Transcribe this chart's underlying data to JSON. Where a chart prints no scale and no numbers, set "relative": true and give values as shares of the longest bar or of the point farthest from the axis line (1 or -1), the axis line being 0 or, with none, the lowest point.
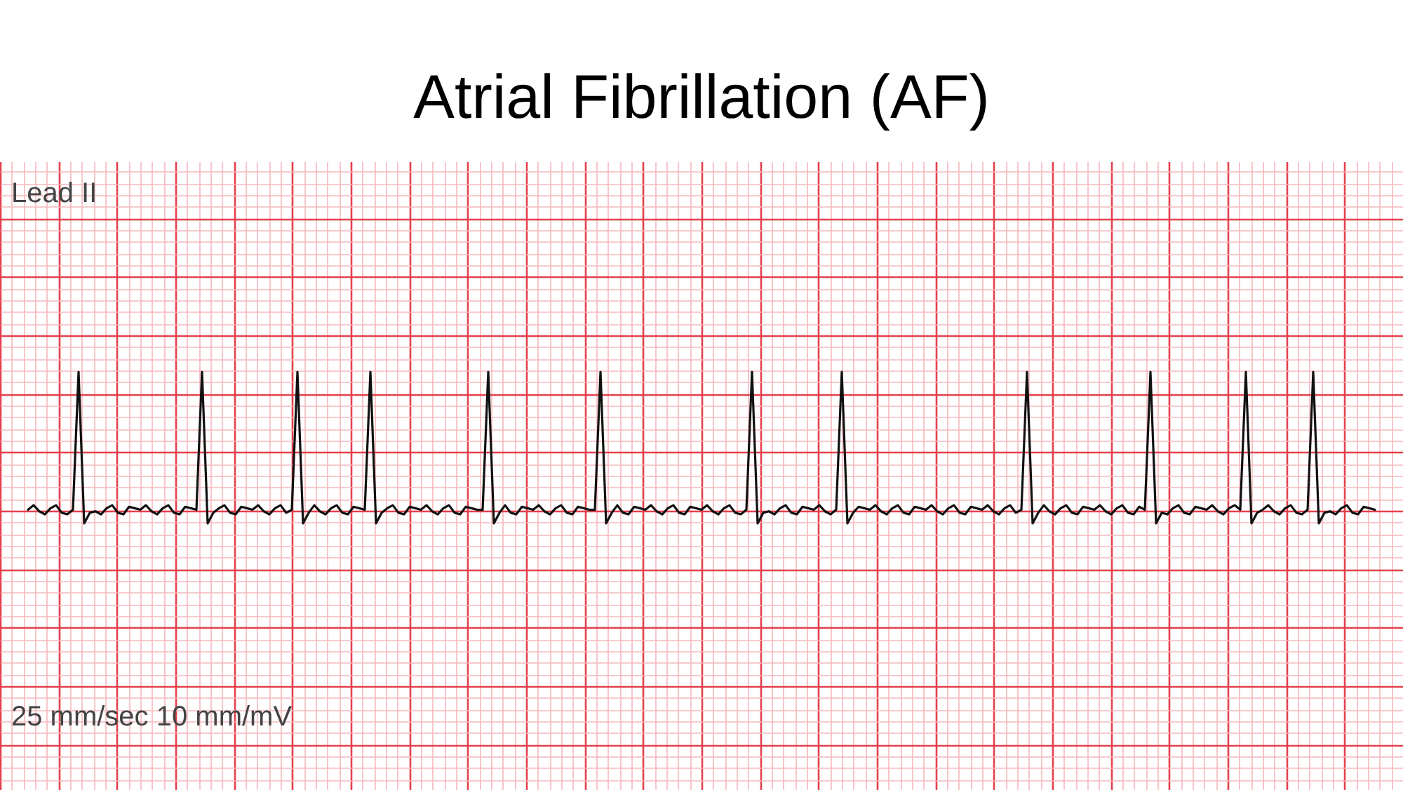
{
  "chart_data": {
    "type": "line",
    "title": "Atrial Fibrillation (AF)",
    "relative": true,
    "grid": true,
    "annotations": [
      "Lead II",
      "25 mm/sec 10 mm/mV"
    ],
    "categories": [
      null,
      null,
      null,
      null,
      null,
      null,
      null,
      null,
      null,
      null,
      null,
      null,
      null,
      null,
      null,
      null,
      null,
      null,
      null,
      null,
      null,
      null,
      null,
      null,
      null,
      null,
      null,
      null,
      null,
      null,
      null,
      null,
      null,
      null,
      null,
      null,
      null,
      null,
      null,
      null,
      null,
      null,
      null,
      null,
      null,
      null,
      null,
      null,
      null,
      null,
      null,
      null,
      null,
      null,
      null,
      null,
      null,
      null,
      null,
      null,
      null,
      null,
      null,
      null,
      null,
      null,
      null,
      null,
      null,
      null,
      null,
      null,
      null,
      null,
      null,
      null,
      null,
      null,
      null,
      null,
      null,
      null,
      null,
      null,
      null,
      null,
      null,
      null,
      null,
      null,
      null,
      null,
      null,
      null,
      null,
      null,
      null,
      null,
      null,
      null,
      null,
      null,
      null,
      null,
      null,
      null,
      null,
      null,
      null,
      null,
      null,
      null,
      null,
      null,
      null,
      null,
      null,
      null,
      null,
      null,
      null,
      null,
      null,
      null,
      null,
      null,
      null,
      null,
      null,
      null,
      null,
      null,
      null,
      null,
      null,
      null,
      null,
      null,
      null,
      null,
      null,
      null,
      null,
      null,
      null,
      null,
      null,
      null,
      null,
      null,
      null,
      null,
      null,
      null,
      null,
      null,
      null,
      null,
      null,
      null,
      null,
      null,
      null,
      null,
      null,
      null,
      null,
      null,
      null,
      null,
      null,
      null,
      null,
      null,
      null,
      null,
      null,
      null,
      null,
      null,
      null,
      null,
      null,
      null,
      null,
      null,
      null,
      null,
      null,
      null,
      null,
      null,
      null,
      null,
      null,
      null,
      null,
      null,
      null,
      null,
      null,
      null,
      null,
      null,
      null,
      null,
      null,
      null,
      null,
      null,
      null,
      null,
      null,
      null,
      null,
      null,
      null,
      null,
      null,
      null,
      null,
      null,
      null,
      null,
      null,
      null,
      null,
      null,
      null,
      null,
      null,
      null,
      null,
      null,
      null,
      null,
      null,
      null,
      null,
      null,
      null
    ],
    "series": [
      {
        "color": "#111111",
        "values": [
          0.09,
          0.12,
          0.08,
          0.06,
          0.1,
          0.12,
          0.07,
          0.06,
          0.09,
          1,
          0,
          0.07,
          0.08,
          0.06,
          0.1,
          0.12,
          0.07,
          0.06,
          0.11,
          0.1,
          0.09,
          0.12,
          0.08,
          0.06,
          0.1,
          0.12,
          0.07,
          0.06,
          0.11,
          0.1,
          0.09,
          1,
          0,
          0.07,
          0.1,
          0.12,
          0.07,
          0.06,
          0.11,
          0.1,
          0.09,
          0.12,
          0.08,
          0.06,
          0.1,
          0.12,
          0.07,
          0.09,
          1,
          0,
          0.07,
          0.12,
          0.08,
          0.06,
          0.1,
          0.12,
          0.07,
          0.06,
          0.11,
          0.1,
          0.09,
          1,
          0,
          0.07,
          0.1,
          0.12,
          0.07,
          0.06,
          0.11,
          0.1,
          0.09,
          0.12,
          0.08,
          0.06,
          0.1,
          0.12,
          0.07,
          0.06,
          0.11,
          0.1,
          0.09,
          0.09,
          1,
          0,
          0.07,
          0.12,
          0.07,
          0.06,
          0.11,
          0.1,
          0.09,
          0.12,
          0.08,
          0.06,
          0.1,
          0.12,
          0.07,
          0.06,
          0.11,
          0.1,
          0.09,
          0.09,
          1,
          0,
          0.07,
          0.12,
          0.07,
          0.06,
          0.11,
          0.1,
          0.09,
          0.12,
          0.08,
          0.06,
          0.1,
          0.12,
          0.07,
          0.06,
          0.11,
          0.1,
          0.09,
          0.12,
          0.08,
          0.06,
          0.1,
          0.12,
          0.07,
          0.06,
          0.09,
          1,
          0,
          0.07,
          0.08,
          0.06,
          0.1,
          0.12,
          0.07,
          0.06,
          0.11,
          0.1,
          0.09,
          0.12,
          0.08,
          0.06,
          0.09,
          1,
          0,
          0.07,
          0.11,
          0.1,
          0.09,
          0.12,
          0.08,
          0.06,
          0.1,
          0.12,
          0.07,
          0.06,
          0.11,
          0.1,
          0.09,
          0.12,
          0.08,
          0.06,
          0.1,
          0.12,
          0.07,
          0.06,
          0.11,
          0.1,
          0.09,
          0.12,
          0.08,
          0.06,
          0.1,
          0.12,
          0.07,
          0.09,
          1,
          0,
          0.07,
          0.12,
          0.08,
          0.06,
          0.1,
          0.12,
          0.07,
          0.06,
          0.11,
          0.1,
          0.09,
          0.12,
          0.08,
          0.06,
          0.1,
          0.12,
          0.07,
          0.06,
          0.11,
          0.09,
          1,
          0,
          0.07,
          0.06,
          0.1,
          0.12,
          0.07,
          0.06,
          0.11,
          0.1,
          0.09,
          0.12,
          0.08,
          0.06,
          0.1,
          0.12,
          0.09,
          1,
          0,
          0.07,
          0.09,
          0.12,
          0.08,
          0.06,
          0.1,
          0.12,
          0.07,
          0.06,
          0.09,
          1,
          0,
          0.07,
          0.08,
          0.06,
          0.1,
          0.12,
          0.07,
          0.06,
          0.11,
          0.1,
          0.09
        ]
      }
    ]
  }
}
